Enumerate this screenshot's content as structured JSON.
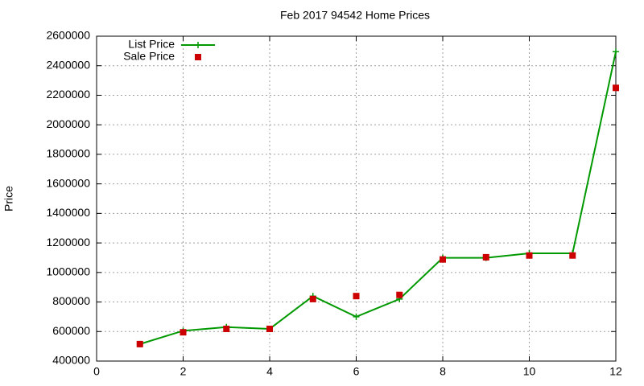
{
  "chart_data": {
    "type": "line",
    "title": "Feb 2017 94542 Home Prices",
    "y_label": "Price",
    "x": [
      1,
      2,
      3,
      4,
      5,
      6,
      7,
      8,
      9,
      10,
      11,
      12
    ],
    "series": [
      {
        "name": "List Price",
        "color": "#009900",
        "line": true,
        "marker": "plus",
        "values": [
          515000,
          605000,
          630000,
          618000,
          840000,
          700000,
          820000,
          1099000,
          1099000,
          1130000,
          1130000,
          2495000
        ]
      },
      {
        "name": "Sale Price",
        "color": "#cc0000",
        "line": false,
        "marker": "square",
        "values": [
          515000,
          595000,
          618000,
          618000,
          820000,
          840000,
          848000,
          1088000,
          1103000,
          1115000,
          1115000,
          2250000
        ]
      }
    ],
    "xlim": [
      0,
      12
    ],
    "xticks": [
      0,
      2,
      4,
      6,
      8,
      10,
      12
    ],
    "ylim": [
      400000,
      2600000
    ],
    "yticks": [
      400000,
      600000,
      800000,
      1000000,
      1200000,
      1400000,
      1600000,
      1800000,
      2000000,
      2200000,
      2400000,
      2600000
    ],
    "grid": true,
    "legend": "top-left"
  }
}
